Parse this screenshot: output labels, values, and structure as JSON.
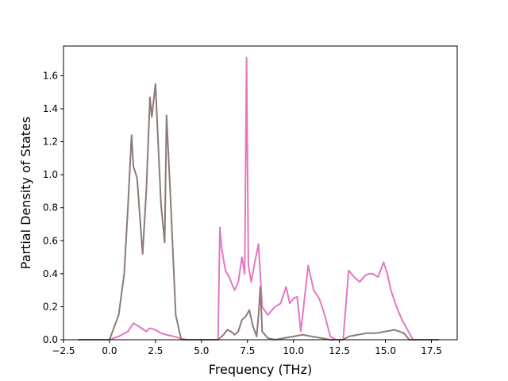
{
  "chart_data": {
    "type": "line",
    "xlabel": "Frequency (THz)",
    "ylabel": "Partial Density of States",
    "xlim": [
      -2.5,
      18.9
    ],
    "ylim": [
      0.0,
      1.78
    ],
    "xticks": [
      "−2.5",
      "0.0",
      "2.5",
      "5.0",
      "7.5",
      "10.0",
      "12.5",
      "15.0",
      "17.5"
    ],
    "xtick_values": [
      -2.5,
      0.0,
      2.5,
      5.0,
      7.5,
      10.0,
      12.5,
      15.0,
      17.5
    ],
    "yticks": [
      "0.0",
      "0.2",
      "0.4",
      "0.6",
      "0.8",
      "1.0",
      "1.2",
      "1.4",
      "1.6"
    ],
    "ytick_values": [
      0.0,
      0.2,
      0.4,
      0.6,
      0.8,
      1.0,
      1.2,
      1.4,
      1.6
    ],
    "grid": false,
    "series": [
      {
        "color": "#e377c2",
        "x": [
          -1.7,
          0.0,
          0.5,
          1.0,
          1.3,
          1.6,
          2.0,
          2.2,
          2.5,
          2.8,
          3.1,
          3.5,
          3.8,
          4.2,
          5.0,
          5.9,
          6.0,
          6.1,
          6.3,
          6.5,
          6.8,
          7.0,
          7.2,
          7.35,
          7.45,
          7.55,
          7.7,
          7.9,
          8.1,
          8.3,
          8.6,
          9.0,
          9.3,
          9.6,
          9.8,
          10.0,
          10.2,
          10.4,
          10.8,
          11.1,
          11.4,
          11.7,
          12.0,
          12.3,
          12.7,
          13.0,
          13.3,
          13.6,
          13.9,
          14.1,
          14.3,
          14.6,
          14.9,
          15.1,
          15.3,
          15.6,
          15.9,
          16.2,
          16.5,
          17.9
        ],
        "y": [
          0.0,
          0.0,
          0.02,
          0.05,
          0.1,
          0.08,
          0.05,
          0.07,
          0.06,
          0.04,
          0.03,
          0.02,
          0.01,
          0.0,
          0.0,
          0.0,
          0.68,
          0.55,
          0.42,
          0.38,
          0.3,
          0.35,
          0.5,
          0.4,
          1.71,
          0.45,
          0.35,
          0.47,
          0.58,
          0.2,
          0.15,
          0.2,
          0.22,
          0.32,
          0.22,
          0.25,
          0.26,
          0.05,
          0.45,
          0.3,
          0.25,
          0.15,
          0.02,
          0.0,
          0.0,
          0.42,
          0.38,
          0.35,
          0.39,
          0.4,
          0.4,
          0.38,
          0.47,
          0.4,
          0.3,
          0.2,
          0.12,
          0.06,
          0.0,
          0.0
        ]
      },
      {
        "color": "#8c7b78",
        "x": [
          -1.7,
          0.0,
          0.5,
          0.8,
          1.0,
          1.2,
          1.3,
          1.5,
          1.8,
          2.0,
          2.2,
          2.3,
          2.5,
          2.6,
          2.8,
          3.0,
          3.1,
          3.3,
          3.6,
          3.9,
          5.0,
          5.9,
          6.0,
          6.2,
          6.4,
          6.6,
          6.8,
          7.0,
          7.2,
          7.4,
          7.6,
          7.8,
          8.0,
          8.1,
          8.2,
          8.3,
          8.6,
          9.0,
          9.5,
          10.0,
          10.5,
          11.0,
          11.5,
          12.0,
          12.3,
          12.7,
          13.0,
          13.5,
          14.0,
          14.5,
          15.0,
          15.5,
          16.0,
          16.3,
          17.9
        ],
        "y": [
          0.0,
          0.0,
          0.15,
          0.4,
          0.8,
          1.24,
          1.05,
          0.98,
          0.52,
          0.9,
          1.47,
          1.35,
          1.55,
          1.3,
          0.82,
          0.59,
          1.36,
          0.9,
          0.15,
          0.0,
          0.0,
          0.0,
          0.01,
          0.03,
          0.06,
          0.05,
          0.03,
          0.05,
          0.12,
          0.14,
          0.18,
          0.08,
          0.02,
          0.15,
          0.32,
          0.05,
          0.01,
          0.0,
          0.01,
          0.02,
          0.03,
          0.02,
          0.01,
          0.0,
          0.0,
          0.0,
          0.02,
          0.03,
          0.04,
          0.04,
          0.05,
          0.06,
          0.04,
          0.0,
          0.0
        ]
      }
    ]
  }
}
